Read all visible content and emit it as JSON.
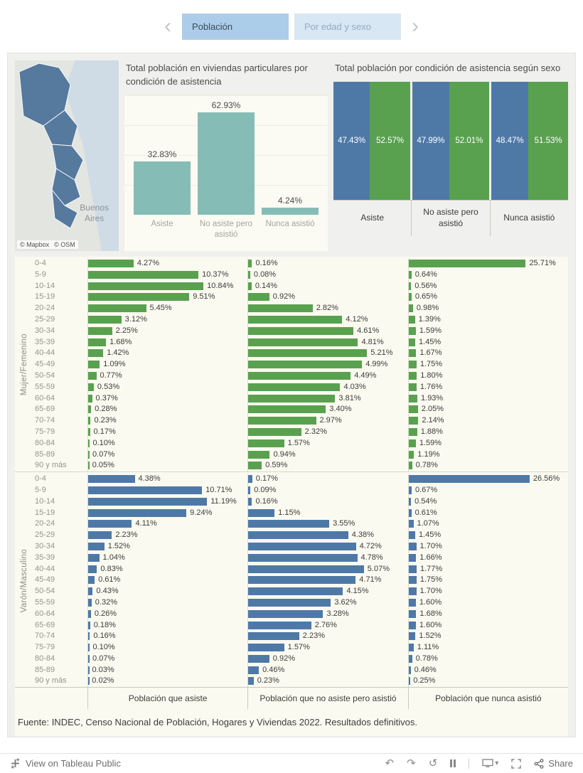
{
  "colors": {
    "green": "#59A14F",
    "blue": "#4E79A7",
    "teal": "#86BCB6",
    "tab_active_bg": "#ABCDEA",
    "tab_inactive_bg": "#D8E7F4",
    "dashboard_bg": "#F0F0EE",
    "plot_bg": "#FBFAF0"
  },
  "icons": {
    "prev": "‹",
    "next": "›",
    "undo": "↶",
    "redo": "↷",
    "reset": "↺",
    "caret_down": "▾"
  },
  "tabs": {
    "items": [
      {
        "label": "Población",
        "active": true
      },
      {
        "label": "Por edad y sexo",
        "active": false
      }
    ]
  },
  "map": {
    "city_line1": "Buenos",
    "city_line2": "Aires",
    "attribution_mapbox": "© Mapbox",
    "attribution_osm": "© OSM"
  },
  "source": "Fuente: INDEC, Censo Nacional de Población, Hogares y Viviendas 2022. Resultados definitivos.",
  "toolbar": {
    "view_on": "View on Tableau Public",
    "share": "Share"
  },
  "chart_data": [
    {
      "type": "bar",
      "title": "Total población en viviendas particulares por condición de asistencia",
      "categories": [
        "Asiste",
        "No asiste pero asistió",
        "Nunca asistió"
      ],
      "values": [
        32.83,
        62.93,
        4.24
      ],
      "value_suffix": "%",
      "ylim": [
        0,
        70
      ],
      "grid": true,
      "legend": "none"
    },
    {
      "type": "bar",
      "title": "Total población por condición de asistencia según sexo",
      "categories": [
        "Asiste",
        "No asiste pero asistió",
        "Nunca asistió"
      ],
      "series": [
        {
          "name": "Varón/Masculino",
          "color_key": "blue",
          "values": [
            47.43,
            47.99,
            48.47
          ]
        },
        {
          "name": "Mujer/Femenino",
          "color_key": "green",
          "values": [
            52.57,
            52.01,
            51.53
          ]
        }
      ],
      "value_suffix": "%",
      "layout": "paired-100pct-columns",
      "legend": "none"
    },
    {
      "type": "bar",
      "orientation": "horizontal",
      "categories": [
        "0-4",
        "5-9",
        "10-14",
        "15-19",
        "20-24",
        "25-29",
        "30-34",
        "35-39",
        "40-44",
        "45-49",
        "50-54",
        "55-59",
        "60-64",
        "65-69",
        "70-74",
        "75-79",
        "80-84",
        "85-89",
        "90 y más"
      ],
      "columns": [
        "Población que asiste",
        "Población que no asiste pero asistió",
        "Población que nunca asistió"
      ],
      "col_axis_max": [
        15,
        7,
        35
      ],
      "value_suffix": "%",
      "groups": [
        {
          "name": "Mujer/Femenino",
          "color_key": "green",
          "values": [
            [
              4.27,
              10.37,
              10.84,
              9.51,
              5.45,
              3.12,
              2.25,
              1.68,
              1.42,
              1.09,
              0.77,
              0.53,
              0.37,
              0.28,
              0.23,
              0.17,
              0.1,
              0.07,
              0.05
            ],
            [
              0.16,
              0.08,
              0.14,
              0.92,
              2.82,
              4.12,
              4.61,
              4.81,
              5.21,
              4.99,
              4.49,
              4.03,
              3.81,
              3.4,
              2.97,
              2.32,
              1.57,
              0.94,
              0.59
            ],
            [
              25.71,
              0.64,
              0.56,
              0.65,
              0.98,
              1.39,
              1.59,
              1.45,
              1.67,
              1.75,
              1.8,
              1.76,
              1.93,
              2.05,
              2.14,
              1.88,
              1.59,
              1.19,
              0.78
            ]
          ]
        },
        {
          "name": "Varón/Masculino",
          "color_key": "blue",
          "values": [
            [
              4.38,
              10.71,
              11.19,
              9.24,
              4.11,
              2.23,
              1.52,
              1.04,
              0.83,
              0.61,
              0.43,
              0.32,
              0.26,
              0.18,
              0.16,
              0.1,
              0.07,
              0.03,
              0.02
            ],
            [
              0.17,
              0.09,
              0.16,
              1.15,
              3.55,
              4.38,
              4.72,
              4.78,
              5.07,
              4.71,
              4.15,
              3.62,
              3.28,
              2.76,
              2.23,
              1.57,
              0.92,
              0.46,
              0.23
            ],
            [
              26.56,
              0.67,
              0.54,
              0.61,
              1.07,
              1.45,
              1.7,
              1.66,
              1.77,
              1.75,
              1.7,
              1.6,
              1.68,
              1.6,
              1.52,
              1.11,
              0.78,
              0.46,
              0.25
            ]
          ]
        }
      ]
    }
  ]
}
